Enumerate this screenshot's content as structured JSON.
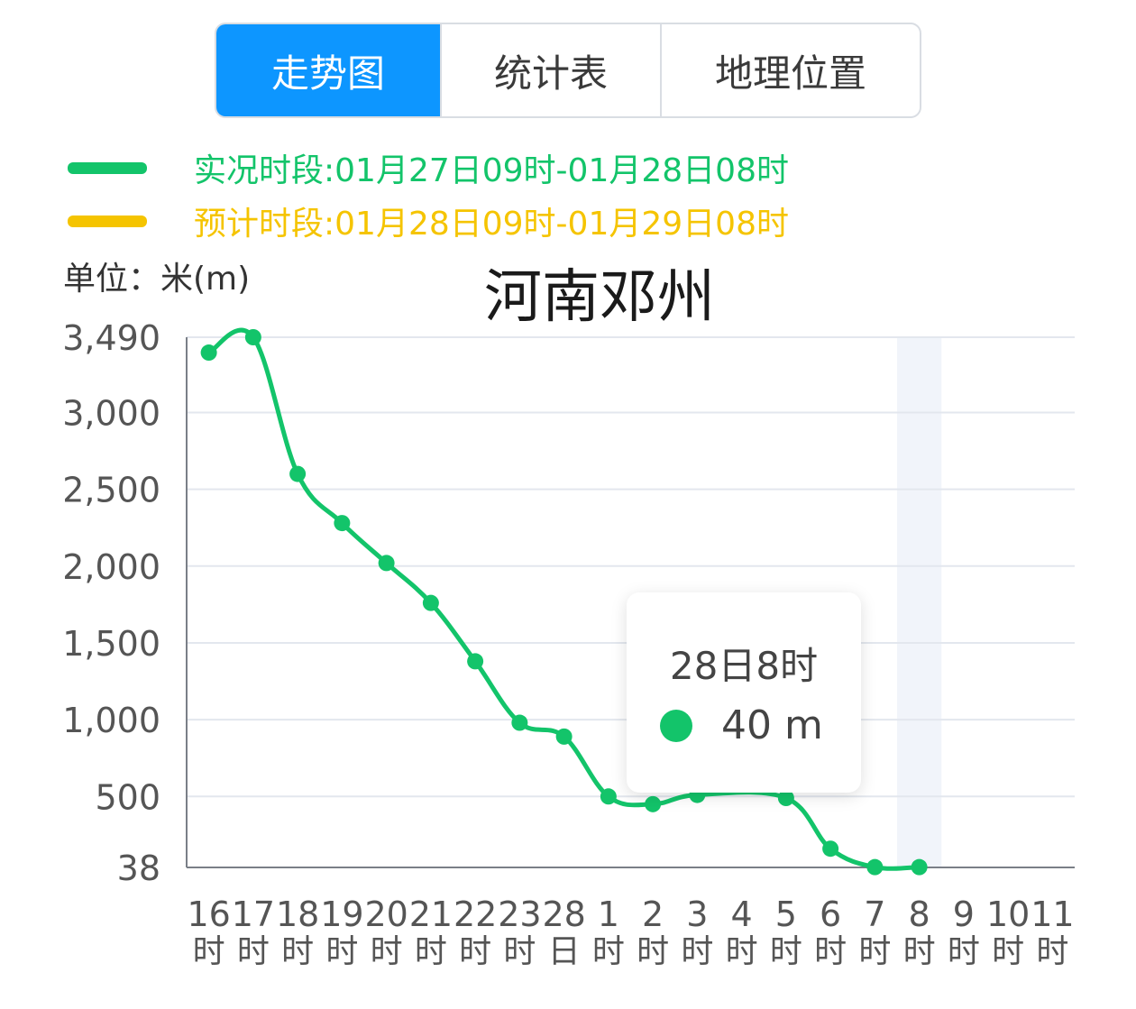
{
  "tabs": [
    {
      "label": "走势图",
      "active": true
    },
    {
      "label": "统计表",
      "active": false
    },
    {
      "label": "地理位置",
      "active": false
    }
  ],
  "legend": {
    "observed": {
      "text": "实况时段:01月27日09时-01月28日08时",
      "color": "#13c46a"
    },
    "forecast": {
      "text": "预计时段:01月28日09时-01月29日08时",
      "color": "#f5c400"
    }
  },
  "unit_label": "单位：米(m)",
  "chart_data": {
    "type": "line",
    "title": "河南邓州",
    "ylabel": "单位：米(m)",
    "ylim": [
      38,
      3490
    ],
    "yticks": [
      3490,
      3000,
      2500,
      2000,
      1500,
      1000,
      500,
      38
    ],
    "ytick_labels": [
      "3,490",
      "3,000",
      "2,500",
      "2,000",
      "1,500",
      "1,000",
      "500",
      "38"
    ],
    "categories": [
      [
        "16",
        "时"
      ],
      [
        "17",
        "时"
      ],
      [
        "18",
        "时"
      ],
      [
        "19",
        "时"
      ],
      [
        "20",
        "时"
      ],
      [
        "21",
        "时"
      ],
      [
        "22",
        "时"
      ],
      [
        "23",
        "时"
      ],
      [
        "28",
        "日"
      ],
      [
        "1",
        "时"
      ],
      [
        "2",
        "时"
      ],
      [
        "3",
        "时"
      ],
      [
        "4",
        "时"
      ],
      [
        "5",
        "时"
      ],
      [
        "6",
        "时"
      ],
      [
        "7",
        "时"
      ],
      [
        "8",
        "时"
      ],
      [
        "9",
        "时"
      ],
      [
        "10",
        "时"
      ],
      [
        "11",
        "时"
      ]
    ],
    "series": [
      {
        "color": "#13c46a",
        "values": [
          3390,
          3490,
          2600,
          2280,
          2020,
          1760,
          1380,
          980,
          890,
          500,
          450,
          510,
          null,
          490,
          160,
          40,
          40,
          null,
          null,
          null
        ]
      }
    ],
    "highlight_index": 16,
    "grid": true
  },
  "tooltip": {
    "title": "28日8时",
    "value": "40 m",
    "color": "#13c46a"
  }
}
